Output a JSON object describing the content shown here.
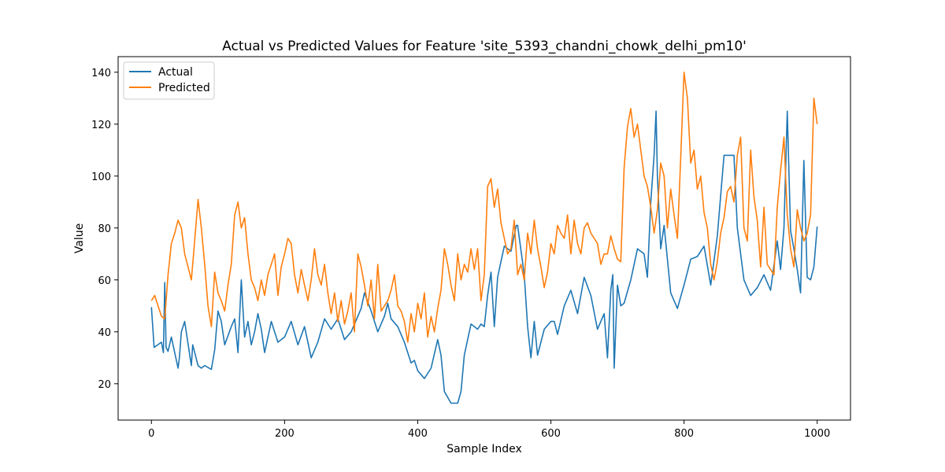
{
  "chart_data": {
    "type": "line",
    "title": "Actual vs Predicted Values for Feature 'site_5393_chandni_chowk_delhi_pm10'",
    "xlabel": "Sample Index",
    "ylabel": "Value",
    "xlim": [
      -50,
      1050
    ],
    "ylim": [
      6,
      146
    ],
    "xticks": [
      0,
      200,
      400,
      600,
      800,
      1000
    ],
    "yticks": [
      20,
      40,
      60,
      80,
      100,
      120,
      140
    ],
    "grid": false,
    "legend": "upper-left",
    "colors": {
      "actual": "#1f77b4",
      "predicted": "#ff7f0e"
    },
    "series": [
      {
        "name": "Actual",
        "x": [
          0,
          4,
          15,
          18,
          20,
          22,
          25,
          30,
          40,
          42,
          45,
          50,
          60,
          62,
          70,
          75,
          80,
          90,
          95,
          100,
          105,
          110,
          120,
          125,
          130,
          135,
          140,
          145,
          150,
          155,
          160,
          165,
          170,
          180,
          190,
          200,
          210,
          220,
          230,
          240,
          250,
          260,
          270,
          280,
          290,
          300,
          310,
          315,
          320,
          330,
          340,
          350,
          355,
          360,
          370,
          380,
          390,
          395,
          400,
          410,
          420,
          430,
          435,
          440,
          450,
          455,
          460,
          465,
          470,
          480,
          490,
          495,
          500,
          505,
          510,
          515,
          520,
          525,
          530,
          540,
          548,
          550,
          560,
          565,
          570,
          575,
          580,
          590,
          600,
          605,
          610,
          620,
          630,
          640,
          650,
          660,
          670,
          680,
          685,
          690,
          693,
          695,
          700,
          705,
          710,
          720,
          730,
          740,
          745,
          750,
          755,
          758,
          760,
          765,
          770,
          780,
          790,
          800,
          810,
          820,
          830,
          840,
          850,
          860,
          870,
          875,
          880,
          890,
          900,
          910,
          920,
          930,
          940,
          945,
          950,
          955,
          960,
          965,
          970,
          975,
          980,
          985,
          990,
          995,
          1000
        ],
        "values": [
          49.5,
          34,
          36,
          32,
          59,
          34,
          32.5,
          38,
          26,
          30,
          40,
          44,
          27,
          35,
          27,
          26,
          27,
          25.5,
          33,
          48,
          44,
          35,
          42,
          45,
          32,
          60,
          38,
          44,
          35,
          40,
          47,
          41,
          32,
          44,
          36,
          38,
          44,
          35,
          42,
          30,
          36,
          45,
          41,
          45,
          37,
          40,
          46,
          49,
          55,
          48,
          40,
          46,
          51,
          45,
          42,
          36,
          28,
          29,
          25,
          22,
          26,
          37,
          31,
          17,
          12.5,
          12.5,
          12.5,
          17,
          31,
          43,
          41,
          43,
          42,
          54,
          63,
          42,
          61,
          67,
          73,
          71,
          81,
          81,
          62,
          42,
          30,
          44,
          31,
          41,
          44,
          44,
          39,
          50,
          56,
          47,
          61,
          54,
          41,
          47,
          30,
          56,
          62,
          26,
          58,
          50,
          51,
          60,
          72,
          70,
          61,
          90,
          108,
          125,
          100,
          72,
          81,
          55,
          49,
          58,
          68,
          69,
          73,
          58,
          77,
          108,
          108,
          108,
          80,
          60,
          54,
          57,
          62,
          56,
          75,
          64,
          80,
          125,
          79,
          72,
          64,
          55,
          106,
          61,
          60,
          65,
          80.5
        ]
      },
      {
        "name": "Predicted",
        "x": [
          0,
          5,
          10,
          15,
          20,
          25,
          30,
          35,
          40,
          45,
          50,
          55,
          60,
          65,
          70,
          75,
          80,
          85,
          90,
          95,
          100,
          105,
          110,
          115,
          120,
          125,
          130,
          135,
          140,
          145,
          150,
          155,
          160,
          165,
          170,
          175,
          180,
          185,
          190,
          195,
          200,
          205,
          210,
          215,
          220,
          225,
          230,
          235,
          240,
          245,
          250,
          255,
          260,
          265,
          270,
          275,
          280,
          285,
          290,
          295,
          300,
          305,
          310,
          315,
          320,
          325,
          330,
          335,
          340,
          345,
          350,
          355,
          360,
          365,
          370,
          375,
          380,
          385,
          390,
          395,
          400,
          405,
          410,
          415,
          420,
          425,
          430,
          435,
          440,
          445,
          450,
          455,
          460,
          465,
          470,
          475,
          480,
          485,
          490,
          495,
          500,
          505,
          510,
          515,
          520,
          525,
          530,
          535,
          540,
          545,
          550,
          555,
          560,
          565,
          570,
          575,
          580,
          585,
          590,
          595,
          600,
          605,
          610,
          615,
          620,
          625,
          630,
          635,
          640,
          645,
          650,
          655,
          660,
          665,
          670,
          675,
          680,
          685,
          690,
          695,
          700,
          705,
          710,
          715,
          720,
          725,
          730,
          735,
          740,
          745,
          750,
          755,
          760,
          765,
          770,
          775,
          780,
          785,
          790,
          795,
          800,
          805,
          810,
          815,
          820,
          825,
          830,
          835,
          840,
          845,
          850,
          855,
          860,
          865,
          870,
          875,
          880,
          885,
          890,
          895,
          900,
          905,
          910,
          915,
          920,
          925,
          930,
          935,
          940,
          945,
          950,
          955,
          960,
          965,
          970,
          975,
          980,
          985,
          990,
          995,
          1000
        ],
        "values": [
          52,
          54,
          50,
          46,
          45,
          62,
          74,
          78,
          83,
          80,
          70,
          65,
          60,
          75,
          91,
          80,
          66,
          50,
          42,
          63,
          55,
          52,
          48,
          58,
          66,
          85,
          90,
          80,
          84,
          70,
          60,
          57,
          52,
          60,
          54,
          62,
          66,
          70,
          54,
          65,
          70,
          76,
          74,
          62,
          55,
          64,
          58,
          52,
          60,
          72,
          62,
          58,
          66,
          55,
          47,
          55,
          44,
          52,
          43,
          48,
          55,
          40,
          70,
          65,
          58,
          50,
          60,
          45,
          66,
          48,
          50,
          52,
          56,
          62,
          50,
          48,
          44,
          36,
          47,
          40,
          51,
          45,
          55,
          38,
          46,
          40,
          49,
          56,
          72,
          66,
          58,
          52,
          70,
          60,
          66,
          63,
          72,
          64,
          72,
          52,
          62,
          96,
          99,
          88,
          95,
          82,
          76,
          70,
          72,
          83,
          62,
          66,
          60,
          78,
          70,
          83,
          72,
          65,
          57,
          63,
          74,
          70,
          81,
          78,
          76,
          85,
          70,
          83,
          74,
          70,
          80,
          82,
          78,
          76,
          74,
          66,
          70,
          70,
          77,
          72,
          68,
          67,
          103,
          119,
          126,
          115,
          120,
          110,
          100,
          96,
          88,
          78,
          87,
          105,
          100,
          80,
          95,
          85,
          76,
          107,
          140,
          130,
          105,
          110,
          95,
          100,
          86,
          80,
          66,
          60,
          67,
          78,
          84,
          94,
          96,
          90,
          108,
          115,
          80,
          75,
          110,
          92,
          83,
          65,
          88,
          66,
          64,
          62,
          88,
          102,
          115,
          85,
          72,
          65,
          87,
          80,
          75,
          78,
          85,
          130,
          120
        ]
      }
    ]
  }
}
